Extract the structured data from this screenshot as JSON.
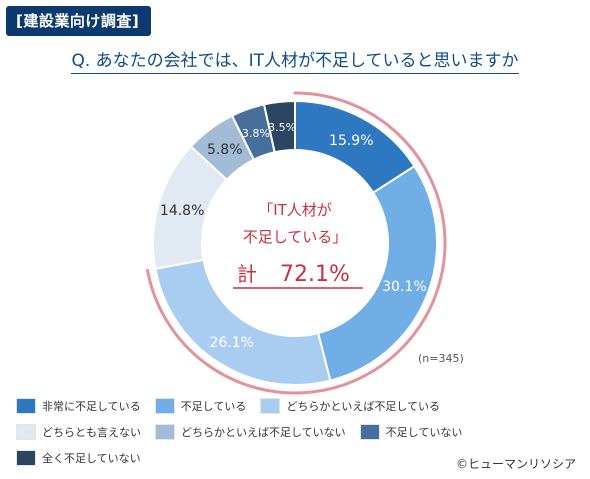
{
  "header": {
    "tag": "[建設業向け調査]",
    "question": "Q. あなたの会社では、IT人材が不足していると思いますか"
  },
  "chart_data": {
    "type": "pie",
    "categories": [
      "非常に不足している",
      "不足している",
      "どちらかといえば不足している",
      "どちらとも言えない",
      "どちらかといえば不足していない",
      "不足していない",
      "全く不足していない"
    ],
    "values": [
      15.9,
      30.1,
      26.1,
      14.8,
      5.8,
      3.8,
      3.5
    ],
    "value_labels": [
      "15.9%",
      "30.1%",
      "26.1%",
      "14.8%",
      "5.8%",
      "3.8%",
      "3.5%"
    ],
    "colors": [
      "#2e77c1",
      "#70aee5",
      "#a9cdf0",
      "#e1e9f2",
      "#a3bcd6",
      "#486f99",
      "#2c4661"
    ],
    "label_colors": [
      "#ffffff",
      "#ffffff",
      "#ffffff",
      "#333333",
      "#333333",
      "#ffffff",
      "#ffffff"
    ],
    "highlight_arc_color": "#e3919b",
    "center": {
      "line1": "「IT人材が",
      "line2": "不足している」",
      "total_label": "計",
      "total_value": "72.1%"
    },
    "n_label": "(n=345)",
    "legend_position": "bottom"
  },
  "copyright": "©ヒューマンリソシア"
}
